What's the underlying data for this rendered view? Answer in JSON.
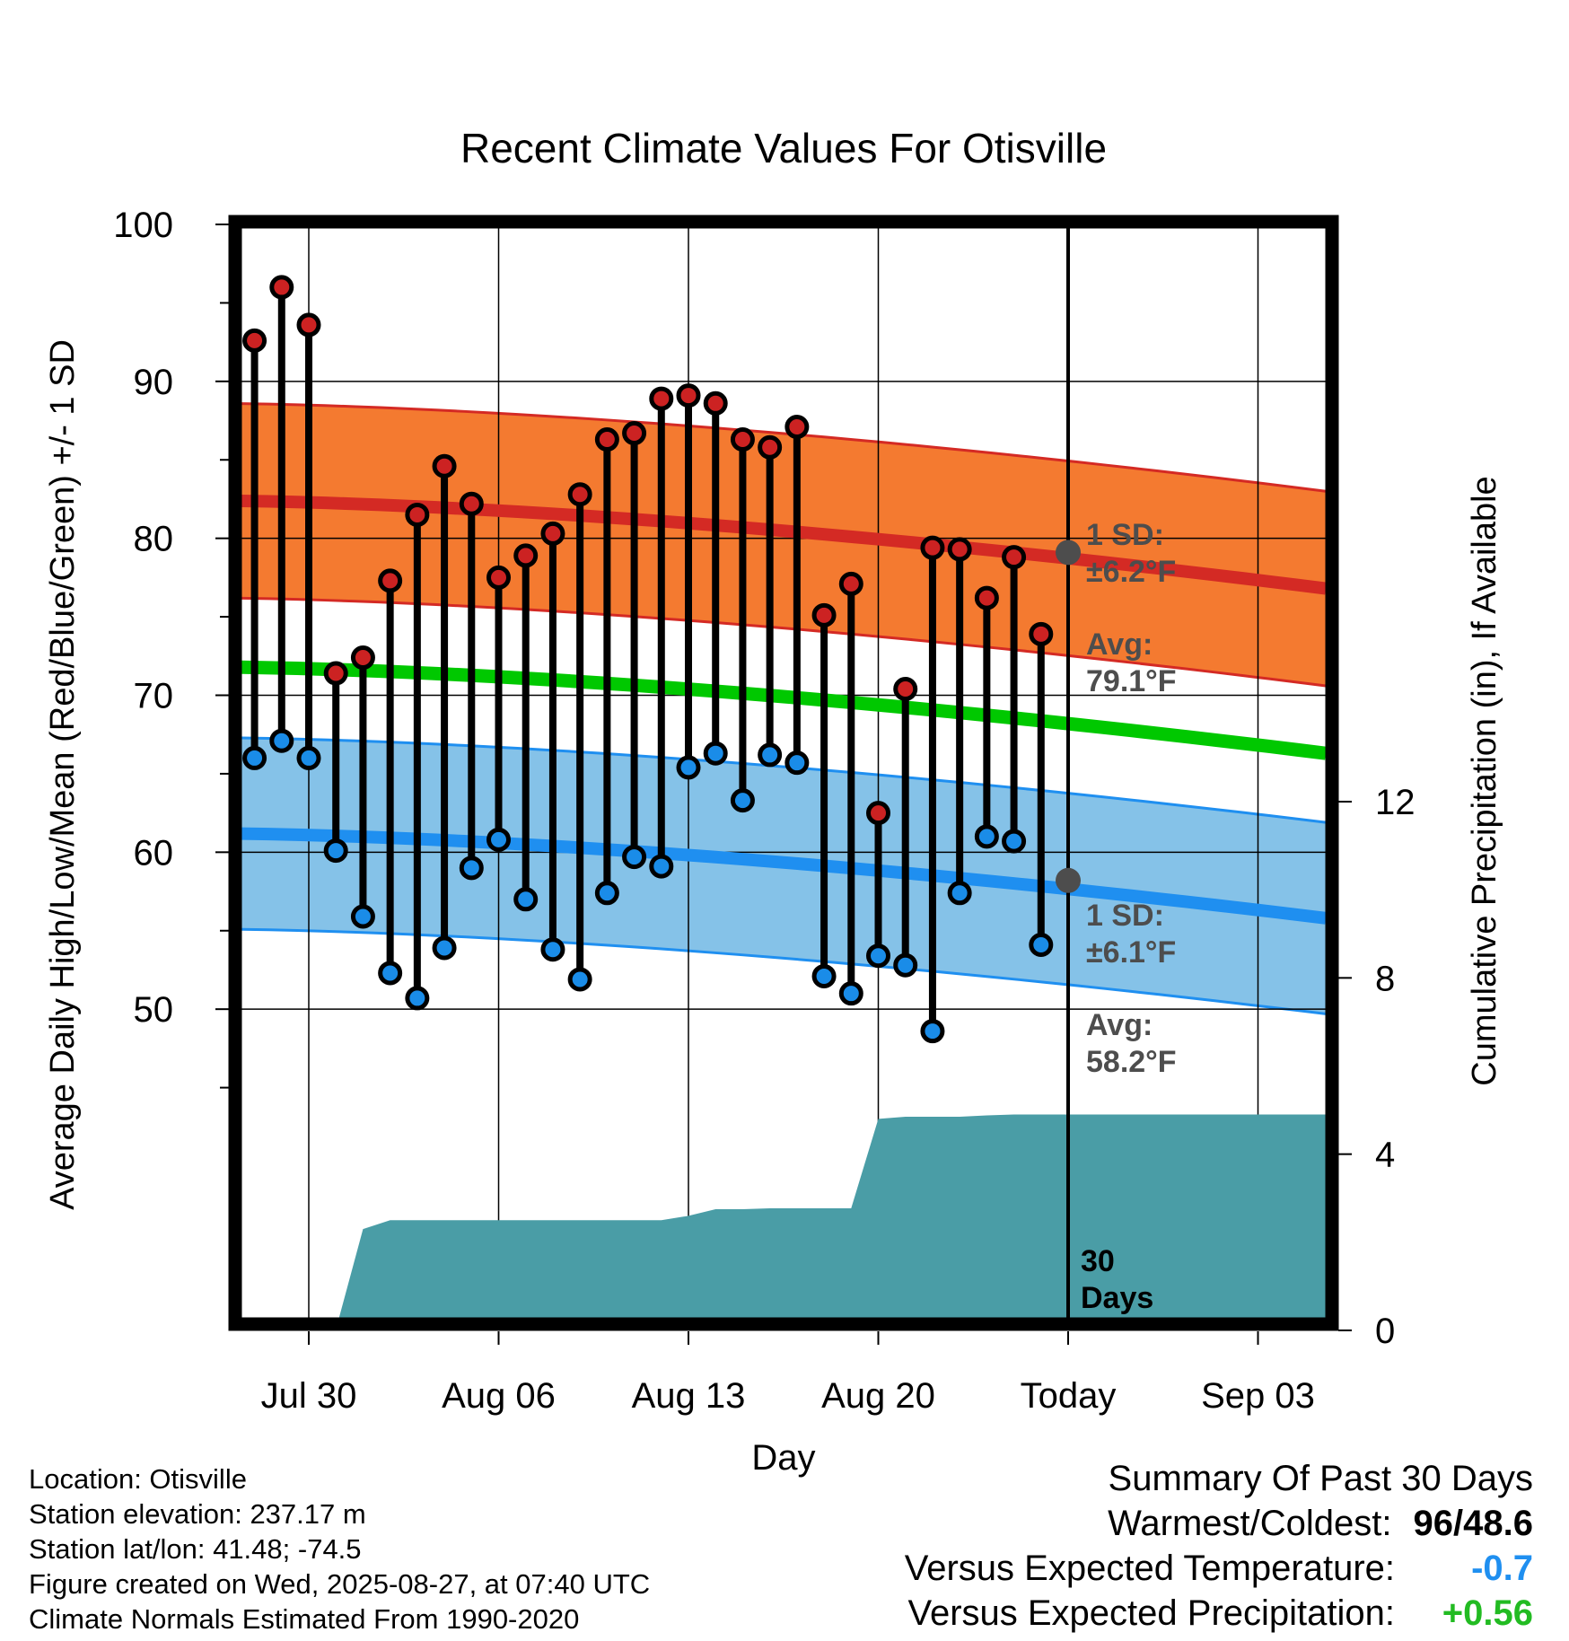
{
  "chart_data": {
    "type": "line",
    "title": "Recent Climate Values For Otisville",
    "xlabel": "Day",
    "ylabel": "Average Daily High/Low/Mean (Red/Blue/Green) +/- 1 SD",
    "y2label": "Cumulative Precipitation (in), If Available",
    "ylim": [
      40,
      102
    ],
    "y_ticks": [
      "100",
      "90",
      "80",
      "70",
      "60",
      "50"
    ],
    "y2_ticks": [
      "12",
      "8",
      "4",
      "0"
    ],
    "x_ticks": [
      "Jul 30",
      "Aug 06",
      "Aug 13",
      "Aug 20",
      "Today",
      "Sep 03"
    ],
    "x_range_days": [
      -31.5,
      9.5
    ],
    "today_line_label": "30\nDays",
    "grid": true,
    "daily_highs": [
      92.6,
      96.0,
      93.6,
      71.4,
      72.4,
      77.3,
      81.5,
      84.6,
      82.2,
      77.5,
      78.9,
      80.3,
      82.8,
      86.3,
      86.7,
      88.9,
      89.1,
      88.6,
      86.3,
      85.8,
      87.1,
      75.1,
      77.1,
      62.5,
      70.4,
      79.4,
      79.3,
      76.2,
      78.8,
      73.9
    ],
    "daily_lows": [
      66.0,
      67.1,
      66.0,
      60.1,
      55.9,
      52.3,
      50.7,
      53.9,
      59.0,
      60.8,
      57.0,
      53.8,
      51.9,
      57.4,
      59.7,
      59.1,
      65.4,
      66.3,
      63.3,
      66.2,
      65.7,
      52.1,
      51.0,
      53.4,
      52.8,
      48.6,
      57.4,
      61.0,
      60.7,
      54.1
    ],
    "normal_high": {
      "start": 82.4,
      "end": 76.8,
      "sd": 6.2
    },
    "normal_low": {
      "start": 61.2,
      "end": 55.8,
      "sd": 6.1
    },
    "normal_mean": {
      "start": 71.8,
      "end": 66.3
    },
    "today_high_avg": 79.1,
    "today_low_avg": 58.2,
    "precip_cumulative": [
      0,
      0,
      0.02,
      2.3,
      2.5,
      2.5,
      2.5,
      2.5,
      2.5,
      2.5,
      2.5,
      2.5,
      2.5,
      2.5,
      2.5,
      2.6,
      2.75,
      2.75,
      2.77,
      2.77,
      2.77,
      2.77,
      4.8,
      4.85,
      4.85,
      4.85,
      4.88,
      4.9,
      4.9,
      4.9
    ],
    "precip_ylim": [
      0,
      16
    ],
    "annotations": {
      "high_sd": "1 SD:\n±6.2°F",
      "high_avg": "Avg:\n79.1°F",
      "low_sd": "1 SD:\n±6.1°F",
      "low_avg": "Avg:\n58.2°F"
    },
    "colors": {
      "high_band": "#f47a30",
      "high_line": "#d42a24",
      "low_band": "#85c2e8",
      "low_line": "#1f8ff0",
      "mean_line": "#00c800",
      "precip": "#4a9da6",
      "high_marker": "#cc2222",
      "low_marker": "#1a8ce8",
      "annotation": "#4d4d4d"
    }
  },
  "meta": {
    "location": "Location: Otisville",
    "elevation": "Station elevation: 237.17 m",
    "latlon": "Station lat/lon: 41.48; -74.5",
    "created": "Figure created on Wed, 2025-08-27, at 07:40 UTC",
    "normals": "Climate Normals Estimated From 1990-2020"
  },
  "summary": {
    "title": "Summary Of Past 30 Days",
    "warmest_label": "Warmest/Coldest:",
    "warmest_value": "96",
    "coldest_value": "48.6",
    "temp_label": "Versus Expected Temperature:",
    "temp_value": "-0.7",
    "temp_color": "#1f8ff0",
    "precip_label": "Versus Expected Precipitation:",
    "precip_value": "+0.56",
    "precip_color": "#22bb22"
  }
}
